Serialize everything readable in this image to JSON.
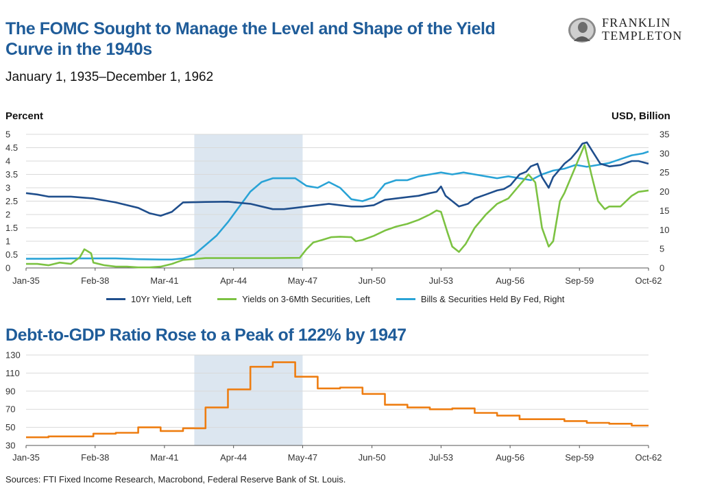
{
  "header": {
    "title": "The FOMC Sought to Manage the Level and Shape of the Yield Curve in the 1940s",
    "subtitle": "January 1, 1935–December 1, 1962"
  },
  "logo": {
    "line1": "FRANKLIN",
    "line2": "TEMPLETON"
  },
  "footer": {
    "sources": "Sources: FTI Fixed Income Research, Macrobond, Federal Reserve Bank of St. Louis."
  },
  "colors": {
    "ten_year": "#1f4e8c",
    "short_yield": "#7cc242",
    "fed_holdings": "#29a3d6",
    "debt_gdp": "#ee7d11",
    "shade": "#dce6f0",
    "title": "#1f5c99"
  },
  "chart_data": [
    {
      "type": "line",
      "title": "",
      "ylabel_left": "Percent",
      "ylabel_right": "USD, Billion",
      "xlim": [
        1935.0,
        1962.75
      ],
      "ylim_left": [
        0,
        5
      ],
      "ylim_right": [
        0,
        35
      ],
      "yticks_left": [
        "0",
        "0.5",
        "1",
        "1.5",
        "2",
        "2.5",
        "3",
        "3.5",
        "4",
        "4.5",
        "5"
      ],
      "yticks_right": [
        "0",
        "5",
        "10",
        "15",
        "20",
        "25",
        "30",
        "35"
      ],
      "xticks": [
        {
          "x": 1935.0,
          "label": "Jan-35"
        },
        {
          "x": 1938.08,
          "label": "Feb-38"
        },
        {
          "x": 1941.17,
          "label": "Mar-41"
        },
        {
          "x": 1944.25,
          "label": "Apr-44"
        },
        {
          "x": 1947.33,
          "label": "May-47"
        },
        {
          "x": 1950.42,
          "label": "Jun-50"
        },
        {
          "x": 1953.5,
          "label": "Jul-53"
        },
        {
          "x": 1956.58,
          "label": "Aug-56"
        },
        {
          "x": 1959.67,
          "label": "Sep-59"
        },
        {
          "x": 1962.75,
          "label": "Oct-62"
        }
      ],
      "shaded_range": [
        1942.5,
        1947.33
      ],
      "grid": "horizontal",
      "legend": "bottom",
      "series": [
        {
          "name": "10Yr Yield, Left",
          "axis": "left",
          "color": "#1f4e8c",
          "points": [
            [
              1935.0,
              2.8
            ],
            [
              1935.5,
              2.75
            ],
            [
              1936.0,
              2.67
            ],
            [
              1937.0,
              2.67
            ],
            [
              1938.0,
              2.6
            ],
            [
              1939.0,
              2.45
            ],
            [
              1940.0,
              2.25
            ],
            [
              1940.5,
              2.05
            ],
            [
              1941.0,
              1.95
            ],
            [
              1941.5,
              2.1
            ],
            [
              1942.0,
              2.45
            ],
            [
              1943.0,
              2.47
            ],
            [
              1944.0,
              2.48
            ],
            [
              1945.0,
              2.4
            ],
            [
              1945.5,
              2.3
            ],
            [
              1946.0,
              2.2
            ],
            [
              1946.5,
              2.2
            ],
            [
              1947.0,
              2.25
            ],
            [
              1947.5,
              2.3
            ],
            [
              1948.0,
              2.35
            ],
            [
              1948.5,
              2.4
            ],
            [
              1949.0,
              2.35
            ],
            [
              1949.5,
              2.3
            ],
            [
              1950.0,
              2.3
            ],
            [
              1950.5,
              2.35
            ],
            [
              1951.0,
              2.55
            ],
            [
              1951.5,
              2.6
            ],
            [
              1952.0,
              2.65
            ],
            [
              1952.5,
              2.7
            ],
            [
              1953.0,
              2.8
            ],
            [
              1953.3,
              2.85
            ],
            [
              1953.5,
              3.05
            ],
            [
              1953.7,
              2.7
            ],
            [
              1954.0,
              2.5
            ],
            [
              1954.3,
              2.3
            ],
            [
              1954.7,
              2.4
            ],
            [
              1955.0,
              2.6
            ],
            [
              1955.5,
              2.75
            ],
            [
              1956.0,
              2.9
            ],
            [
              1956.3,
              2.95
            ],
            [
              1956.6,
              3.1
            ],
            [
              1956.8,
              3.3
            ],
            [
              1957.0,
              3.5
            ],
            [
              1957.3,
              3.6
            ],
            [
              1957.5,
              3.8
            ],
            [
              1957.8,
              3.9
            ],
            [
              1958.0,
              3.4
            ],
            [
              1958.3,
              3.0
            ],
            [
              1958.5,
              3.4
            ],
            [
              1958.8,
              3.7
            ],
            [
              1959.0,
              3.9
            ],
            [
              1959.3,
              4.1
            ],
            [
              1959.6,
              4.4
            ],
            [
              1959.8,
              4.65
            ],
            [
              1960.0,
              4.7
            ],
            [
              1960.3,
              4.3
            ],
            [
              1960.6,
              3.9
            ],
            [
              1961.0,
              3.8
            ],
            [
              1961.5,
              3.85
            ],
            [
              1962.0,
              4.0
            ],
            [
              1962.3,
              4.0
            ],
            [
              1962.75,
              3.9
            ]
          ]
        },
        {
          "name": "Yields on 3-6Mth Securities, Left",
          "axis": "left",
          "color": "#7cc242",
          "points": [
            [
              1935.0,
              0.15
            ],
            [
              1935.5,
              0.15
            ],
            [
              1936.0,
              0.1
            ],
            [
              1936.5,
              0.2
            ],
            [
              1937.0,
              0.15
            ],
            [
              1937.4,
              0.4
            ],
            [
              1937.6,
              0.7
            ],
            [
              1937.9,
              0.55
            ],
            [
              1938.0,
              0.2
            ],
            [
              1938.5,
              0.1
            ],
            [
              1939.0,
              0.05
            ],
            [
              1939.5,
              0.05
            ],
            [
              1940.0,
              0.02
            ],
            [
              1940.5,
              0.02
            ],
            [
              1941.0,
              0.05
            ],
            [
              1941.5,
              0.15
            ],
            [
              1942.0,
              0.3
            ],
            [
              1943.0,
              0.37
            ],
            [
              1944.0,
              0.37
            ],
            [
              1945.0,
              0.37
            ],
            [
              1946.0,
              0.37
            ],
            [
              1947.2,
              0.38
            ],
            [
              1947.5,
              0.7
            ],
            [
              1947.8,
              0.95
            ],
            [
              1948.2,
              1.05
            ],
            [
              1948.6,
              1.15
            ],
            [
              1949.0,
              1.17
            ],
            [
              1949.5,
              1.15
            ],
            [
              1949.7,
              1.0
            ],
            [
              1950.0,
              1.05
            ],
            [
              1950.5,
              1.2
            ],
            [
              1951.0,
              1.4
            ],
            [
              1951.5,
              1.55
            ],
            [
              1952.0,
              1.65
            ],
            [
              1952.5,
              1.8
            ],
            [
              1953.0,
              2.0
            ],
            [
              1953.3,
              2.15
            ],
            [
              1953.5,
              2.1
            ],
            [
              1953.8,
              1.3
            ],
            [
              1954.0,
              0.8
            ],
            [
              1954.3,
              0.6
            ],
            [
              1954.6,
              0.9
            ],
            [
              1955.0,
              1.5
            ],
            [
              1955.5,
              2.0
            ],
            [
              1956.0,
              2.4
            ],
            [
              1956.5,
              2.6
            ],
            [
              1957.0,
              3.1
            ],
            [
              1957.4,
              3.5
            ],
            [
              1957.7,
              3.2
            ],
            [
              1958.0,
              1.5
            ],
            [
              1958.3,
              0.8
            ],
            [
              1958.5,
              1.0
            ],
            [
              1958.8,
              2.5
            ],
            [
              1959.0,
              2.8
            ],
            [
              1959.3,
              3.4
            ],
            [
              1959.6,
              4.0
            ],
            [
              1959.9,
              4.6
            ],
            [
              1960.2,
              3.5
            ],
            [
              1960.5,
              2.5
            ],
            [
              1960.8,
              2.2
            ],
            [
              1961.0,
              2.3
            ],
            [
              1961.5,
              2.3
            ],
            [
              1962.0,
              2.7
            ],
            [
              1962.3,
              2.85
            ],
            [
              1962.75,
              2.9
            ]
          ]
        },
        {
          "name": "Bills & Securities Held By Fed, Right",
          "axis": "right",
          "color": "#29a3d6",
          "points": [
            [
              1935.0,
              2.4
            ],
            [
              1936.0,
              2.4
            ],
            [
              1937.0,
              2.5
            ],
            [
              1938.0,
              2.5
            ],
            [
              1939.0,
              2.5
            ],
            [
              1940.0,
              2.3
            ],
            [
              1941.0,
              2.2
            ],
            [
              1941.5,
              2.2
            ],
            [
              1942.0,
              2.5
            ],
            [
              1942.5,
              3.5
            ],
            [
              1943.0,
              6.0
            ],
            [
              1943.5,
              8.5
            ],
            [
              1944.0,
              12.0
            ],
            [
              1944.5,
              16.0
            ],
            [
              1945.0,
              20.0
            ],
            [
              1945.5,
              22.5
            ],
            [
              1946.0,
              23.5
            ],
            [
              1946.5,
              23.5
            ],
            [
              1947.0,
              23.5
            ],
            [
              1947.5,
              21.5
            ],
            [
              1948.0,
              21.0
            ],
            [
              1948.5,
              22.5
            ],
            [
              1949.0,
              21.0
            ],
            [
              1949.5,
              18.0
            ],
            [
              1950.0,
              17.5
            ],
            [
              1950.5,
              18.5
            ],
            [
              1951.0,
              22.0
            ],
            [
              1951.5,
              23.0
            ],
            [
              1952.0,
              23.0
            ],
            [
              1952.5,
              24.0
            ],
            [
              1953.0,
              24.5
            ],
            [
              1953.5,
              25.0
            ],
            [
              1954.0,
              24.5
            ],
            [
              1954.5,
              25.0
            ],
            [
              1955.0,
              24.5
            ],
            [
              1955.5,
              24.0
            ],
            [
              1956.0,
              23.5
            ],
            [
              1956.5,
              24.0
            ],
            [
              1957.0,
              23.5
            ],
            [
              1957.5,
              23.0
            ],
            [
              1958.0,
              24.5
            ],
            [
              1958.5,
              25.5
            ],
            [
              1959.0,
              26.0
            ],
            [
              1959.5,
              27.0
            ],
            [
              1960.0,
              26.5
            ],
            [
              1960.5,
              27.0
            ],
            [
              1961.0,
              27.5
            ],
            [
              1961.5,
              28.5
            ],
            [
              1962.0,
              29.5
            ],
            [
              1962.5,
              30.0
            ],
            [
              1962.75,
              30.5
            ]
          ]
        }
      ]
    },
    {
      "type": "line",
      "title": "Debt-to-GDP Ratio Rose to a Peak of 122% by 1947",
      "xlim": [
        1935.0,
        1962.75
      ],
      "ylim": [
        30,
        130
      ],
      "yticks": [
        "30",
        "50",
        "70",
        "90",
        "110",
        "130"
      ],
      "xticks": [
        {
          "x": 1935.0,
          "label": "Jan-35"
        },
        {
          "x": 1938.08,
          "label": "Feb-38"
        },
        {
          "x": 1941.17,
          "label": "Mar-41"
        },
        {
          "x": 1944.25,
          "label": "Apr-44"
        },
        {
          "x": 1947.33,
          "label": "May-47"
        },
        {
          "x": 1950.42,
          "label": "Jun-50"
        },
        {
          "x": 1953.5,
          "label": "Jul-53"
        },
        {
          "x": 1956.58,
          "label": "Aug-56"
        },
        {
          "x": 1959.67,
          "label": "Sep-59"
        },
        {
          "x": 1962.75,
          "label": "Oct-62"
        }
      ],
      "shaded_range": [
        1942.5,
        1947.33
      ],
      "grid": "horizontal",
      "series": [
        {
          "name": "",
          "color": "#ee7d11",
          "step": true,
          "points": [
            [
              1935.0,
              39
            ],
            [
              1936.0,
              40
            ],
            [
              1937.0,
              40
            ],
            [
              1938.0,
              43
            ],
            [
              1939.0,
              44
            ],
            [
              1940.0,
              50
            ],
            [
              1941.0,
              46
            ],
            [
              1942.0,
              49
            ],
            [
              1943.0,
              72
            ],
            [
              1944.0,
              92
            ],
            [
              1945.0,
              117
            ],
            [
              1946.0,
              122
            ],
            [
              1947.0,
              106
            ],
            [
              1948.0,
              93
            ],
            [
              1949.0,
              94
            ],
            [
              1950.0,
              87
            ],
            [
              1951.0,
              75
            ],
            [
              1952.0,
              72
            ],
            [
              1953.0,
              70
            ],
            [
              1954.0,
              71
            ],
            [
              1955.0,
              66
            ],
            [
              1956.0,
              63
            ],
            [
              1957.0,
              59
            ],
            [
              1958.0,
              59
            ],
            [
              1959.0,
              57
            ],
            [
              1960.0,
              55
            ],
            [
              1961.0,
              54
            ],
            [
              1962.0,
              52
            ],
            [
              1962.75,
              52
            ]
          ]
        }
      ]
    }
  ]
}
